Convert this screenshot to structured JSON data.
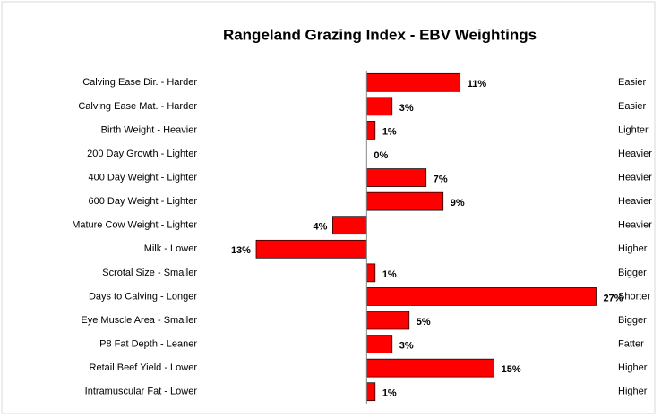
{
  "chart_data": {
    "type": "bar",
    "orientation": "horizontal",
    "title": "Rangeland Grazing Index  - EBV Weightings",
    "categories": [
      "Calving Ease Dir. - Harder",
      "Calving Ease Mat. - Harder",
      "Birth Weight - Heavier",
      "200 Day Growth - Lighter",
      "400 Day Weight - Lighter",
      "600 Day Weight - Lighter",
      "Mature Cow Weight - Lighter",
      "Milk - Lower",
      "Scrotal Size - Smaller",
      "Days to Calving - Longer",
      "Eye Muscle Area - Smaller",
      "P8 Fat Depth - Leaner",
      "Retail Beef Yield - Lower",
      "Intramuscular Fat - Lower"
    ],
    "right_labels": [
      "Easier",
      "Easier",
      "Lighter",
      "Heavier",
      "Heavier",
      "Heavier",
      "Heavier",
      "Higher",
      "Bigger",
      "Shorter",
      "Bigger",
      "Fatter",
      "Higher",
      "Higher"
    ],
    "values": [
      11,
      3,
      1,
      0,
      7,
      9,
      -4,
      -13,
      1,
      27,
      5,
      3,
      15,
      1
    ],
    "value_labels": [
      "11%",
      "3%",
      "1%",
      "0%",
      "7%",
      "9%",
      "4%",
      "13%",
      "1%",
      "27%",
      "5%",
      "3%",
      "15%",
      "1%"
    ],
    "color": "#ff0000",
    "xlim": [
      -15,
      30
    ]
  }
}
